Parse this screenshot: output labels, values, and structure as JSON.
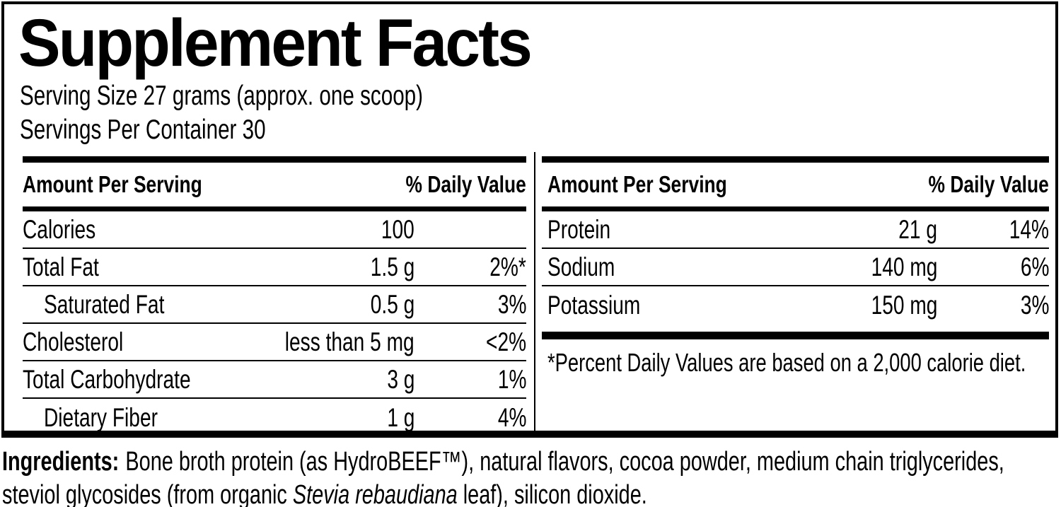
{
  "label": {
    "title": "Supplement Facts",
    "serving_size": "Serving Size 27 grams (approx. one scoop)",
    "servings_per_container": "Servings Per Container 30",
    "columns": [
      {
        "header": {
          "amount": "Amount Per Serving",
          "daily_value": "% Daily Value"
        },
        "rows": [
          {
            "name": "Calories",
            "amount": "100",
            "dv": ""
          },
          {
            "name": "Total Fat",
            "amount": "1.5 g",
            "dv": "2%*"
          },
          {
            "name": "Saturated Fat",
            "amount": "0.5 g",
            "dv": "3%"
          },
          {
            "name": "Cholesterol",
            "amount": "less than 5 mg",
            "dv": "<2%"
          },
          {
            "name": "Total Carbohydrate",
            "amount": "3 g",
            "dv": "1%"
          },
          {
            "name": "Dietary Fiber",
            "amount": "1 g",
            "dv": "4%"
          }
        ]
      },
      {
        "header": {
          "amount": "Amount Per Serving",
          "daily_value": "% Daily Value"
        },
        "rows": [
          {
            "name": "Protein",
            "amount": "21 g",
            "dv": "14%"
          },
          {
            "name": "Sodium",
            "amount": "140 mg",
            "dv": "6%"
          },
          {
            "name": "Potassium",
            "amount": "150 mg",
            "dv": "3%"
          }
        ],
        "footnote": "*Percent Daily Values are based on a 2,000 calorie diet."
      }
    ],
    "ingredients": {
      "heading": "Ingredients:",
      "before_italic": "Bone broth protein (as HydroBEEF™), natural flavors, cocoa powder, medium chain triglycerides, steviol glycosides (from organic ",
      "italic": "Stevia rebaudiana",
      "after_italic": " leaf), silicon dioxide."
    },
    "colors": {
      "ink": "#000000",
      "background": "#ffffff"
    }
  }
}
